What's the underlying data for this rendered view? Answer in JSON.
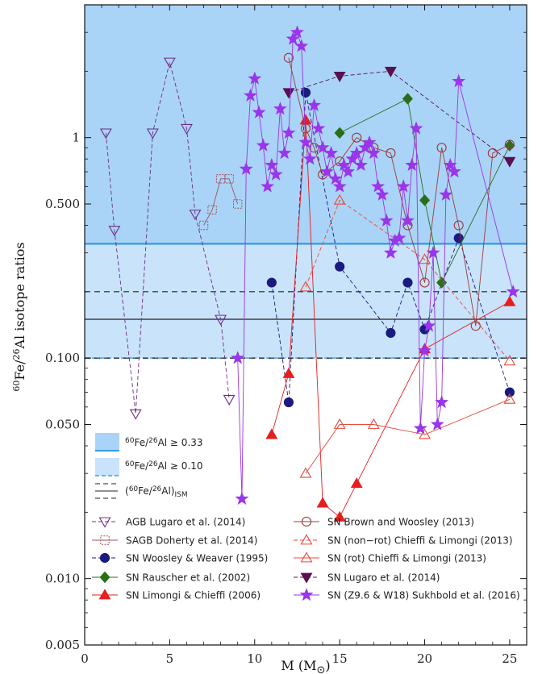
{
  "chart_data": {
    "type": "scatter",
    "xlabel_prefix": "M (M",
    "xlabel_suffix": ")",
    "ylabel_parts": [
      "60",
      "Fe/",
      "26",
      "Al isotope ratios"
    ],
    "xlim": [
      0,
      26
    ],
    "ylim": [
      0.005,
      4
    ],
    "yscale": "log",
    "x_ticks": [
      0,
      5,
      10,
      15,
      20,
      25
    ],
    "x_tick_labels": [
      "0",
      "5",
      "10",
      "15",
      "20",
      "25"
    ],
    "y_ticks": [
      0.005,
      0.01,
      0.05,
      0.1,
      0.5,
      1
    ],
    "y_tick_labels": [
      "0.005",
      "0.010",
      "0.050",
      "0.100",
      "0.500",
      "1"
    ],
    "bands": [
      {
        "name": "60Fe/26Al ≥ 0.33",
        "from": 0.33,
        "color": "#aad4f7",
        "line_color": "#3399e6"
      },
      {
        "name": "60Fe/26Al ≥ 0.10",
        "from": 0.1,
        "color": "#c9e3fb",
        "line_color": "#66b3ea"
      }
    ],
    "band_legend": [
      {
        "label": "60Fe/26Al ≥ 0.33",
        "sup1": "60",
        "mid": "Fe/",
        "sup2": "26",
        "tail": "Al ≥ 0.33"
      },
      {
        "label": "60Fe/26Al ≥ 0.10",
        "sup1": "60",
        "mid": "Fe/",
        "sup2": "26",
        "tail": "Al ≥ 0.10"
      }
    ],
    "ism": {
      "label": "(60Fe/26Al)ISM",
      "center": 0.15,
      "upper": 0.2,
      "lower": 0.1
    },
    "series": [
      {
        "name": "AGB Lugaro et al. (2014)",
        "color": "#6b2d8a",
        "marker": "tri-down-open",
        "line": "dash",
        "x": [
          1.25,
          1.75,
          3,
          4,
          5,
          6,
          6.5,
          8,
          8.5
        ],
        "y": [
          1.05,
          0.38,
          0.056,
          1.05,
          2.2,
          1.1,
          0.45,
          0.15,
          0.065
        ]
      },
      {
        "name": "SAGB Doherty et al. (2014)",
        "color": "#a0525a",
        "marker": "square-open",
        "line": "solid",
        "x": [
          7,
          7.5,
          8,
          8.5,
          9
        ],
        "y": [
          0.4,
          0.47,
          0.65,
          0.65,
          0.5
        ]
      },
      {
        "name": "SN Woosley & Weaver (1995)",
        "color": "#1a1a80",
        "marker": "circle-filled",
        "line": "dash",
        "x": [
          11,
          12,
          13,
          15,
          18,
          19,
          20,
          22,
          25
        ],
        "y": [
          0.22,
          0.063,
          1.6,
          0.26,
          0.13,
          0.22,
          0.135,
          0.35,
          0.07
        ]
      },
      {
        "name": "SN Rauscher et al. (2002)",
        "color": "#2a6e1a",
        "marker": "diamond-filled",
        "line": "solid",
        "x": [
          15,
          19,
          20,
          21,
          25
        ],
        "y": [
          1.05,
          1.5,
          0.52,
          0.22,
          0.92
        ]
      },
      {
        "name": "SN Limongi & Chieffi (2006)",
        "color": "#e61e1e",
        "marker": "tri-up-filled",
        "line": "solid",
        "x": [
          11,
          12,
          13,
          14,
          15,
          16,
          20,
          25
        ],
        "y": [
          0.045,
          0.085,
          1.2,
          0.022,
          0.019,
          0.027,
          0.11,
          0.18
        ]
      },
      {
        "name": "SN Brown and Woosley (2013)",
        "color": "#9a3a3a",
        "marker": "circle-open",
        "line": "solid",
        "x": [
          12,
          13,
          13.5,
          14,
          15,
          16,
          17,
          18,
          19,
          20,
          21,
          22,
          23,
          24,
          25
        ],
        "y": [
          2.3,
          1.1,
          0.9,
          0.68,
          0.78,
          1.0,
          0.9,
          0.85,
          0.4,
          0.22,
          0.9,
          0.4,
          0.14,
          0.85,
          0.93
        ]
      },
      {
        "name": "SN (non−rot) Chieffi & Limongi (2013)",
        "color": "#e64a3a",
        "marker": "tri-up-open",
        "line": "dash",
        "x": [
          13,
          15,
          20,
          25
        ],
        "y": [
          0.21,
          0.52,
          0.28,
          0.097
        ]
      },
      {
        "name": "SN (rot) Chieffi & Limongi (2013)",
        "color": "#e64a3a",
        "marker": "tri-up-open",
        "line": "solid",
        "x": [
          13,
          15,
          17,
          20,
          25
        ],
        "y": [
          0.03,
          0.05,
          0.05,
          0.045,
          0.065
        ]
      },
      {
        "name": "SN Lugaro et al. (2014)",
        "color": "#5a1050",
        "marker": "tri-down-filled",
        "line": "dash",
        "x": [
          12,
          15,
          18,
          25
        ],
        "y": [
          1.6,
          1.9,
          2.0,
          0.78
        ]
      },
      {
        "name": "SN (Z9.6 & W18) Sukhbold et al. (2016)",
        "color": "#9a35ea",
        "marker": "star-filled",
        "line": "solid",
        "x": [
          9,
          9.25,
          9.5,
          9.75,
          10,
          10.25,
          10.5,
          10.75,
          11,
          11.25,
          11.5,
          11.75,
          12,
          12.25,
          12.5,
          12.75,
          13,
          13.25,
          13.5,
          13.75,
          14,
          14.25,
          14.5,
          14.75,
          15,
          15.25,
          15.5,
          15.75,
          16,
          16.25,
          16.5,
          16.75,
          17,
          17.25,
          17.5,
          17.75,
          18,
          18.25,
          18.5,
          18.75,
          19,
          19.25,
          19.5,
          19.75,
          20,
          20.25,
          20.5,
          20.75,
          21,
          21.25,
          21.5,
          21.75,
          22,
          25.2
        ],
        "y": [
          0.1,
          0.023,
          0.72,
          1.55,
          1.85,
          1.3,
          0.92,
          0.6,
          0.75,
          0.68,
          1.35,
          0.85,
          1.05,
          2.8,
          3.0,
          2.6,
          0.95,
          0.8,
          1.4,
          1.1,
          0.9,
          0.7,
          0.85,
          0.65,
          0.6,
          0.75,
          0.7,
          0.8,
          0.85,
          0.75,
          0.9,
          0.95,
          0.85,
          0.6,
          0.55,
          0.42,
          0.3,
          0.34,
          0.35,
          0.6,
          0.42,
          0.75,
          1.1,
          0.048,
          0.108,
          0.14,
          0.3,
          0.05,
          0.063,
          0.55,
          0.75,
          0.7,
          1.8,
          0.2
        ]
      }
    ],
    "legend": {
      "left": [
        "AGB Lugaro et al. (2014)",
        "SAGB Doherty et al. (2014)",
        "SN Woosley & Weaver (1995)",
        "SN Rauscher et al. (2002)",
        "SN Limongi & Chieffi (2006)"
      ],
      "right": [
        "SN Brown and Woosley (2013)",
        "SN (non−rot) Chieffi & Limongi (2013)",
        "SN (rot) Chieffi & Limongi (2013)",
        "SN Lugaro et al. (2014)",
        "SN (Z9.6 & W18) Sukhbold et al. (2016)"
      ]
    }
  }
}
